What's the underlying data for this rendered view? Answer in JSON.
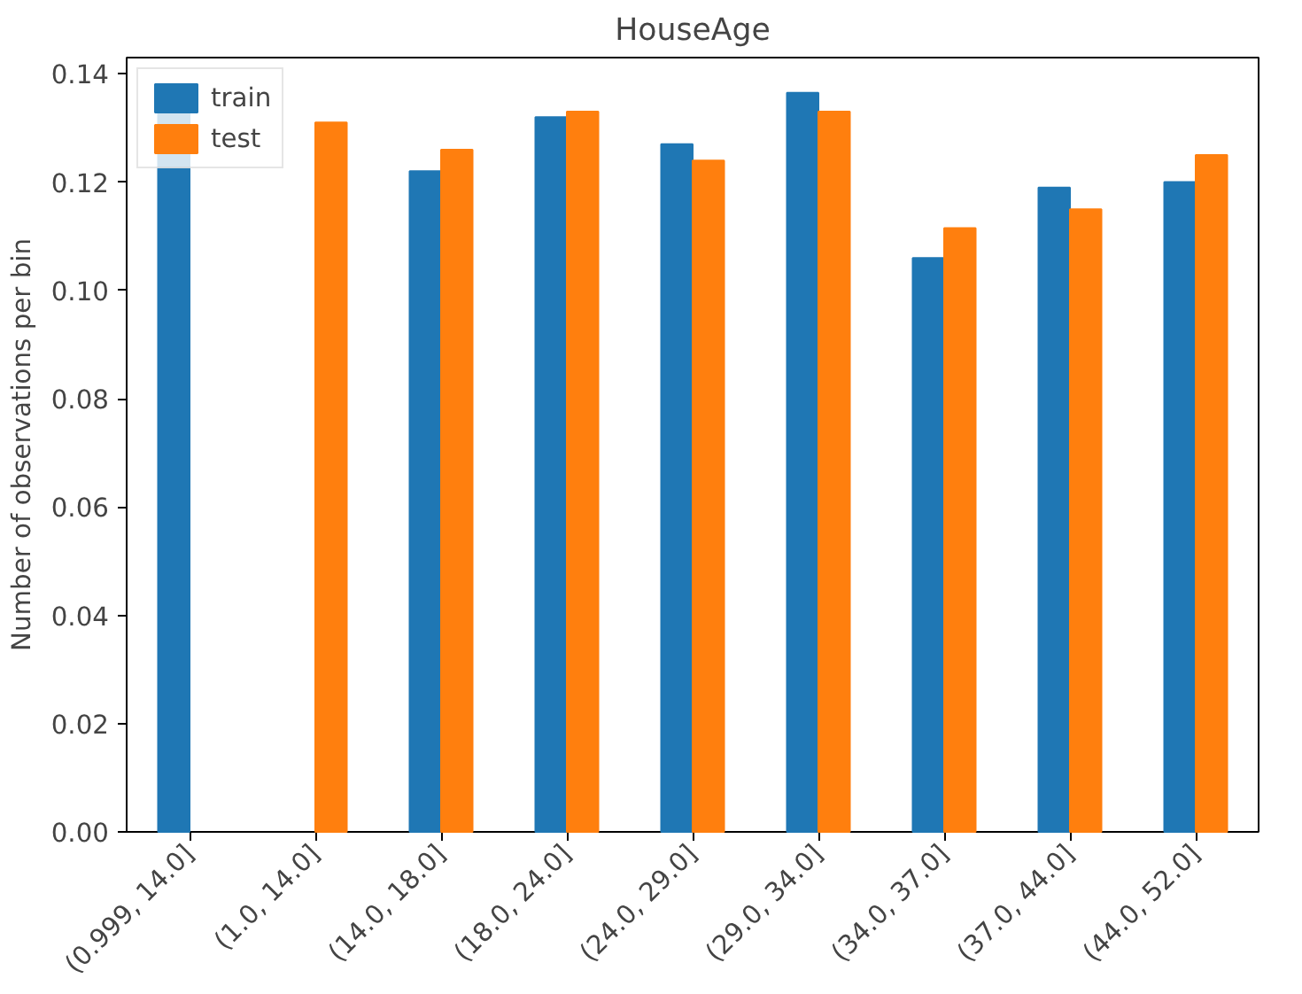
{
  "chart_data": {
    "type": "bar",
    "title": "HouseAge",
    "ylabel": "Number of observations per bin",
    "categories": [
      "(0.999, 14.0]",
      "(1.0, 14.0]",
      "(14.0, 18.0]",
      "(18.0, 24.0]",
      "(24.0, 29.0]",
      "(29.0, 34.0]",
      "(34.0, 37.0]",
      "(37.0, 44.0]",
      "(44.0, 52.0]"
    ],
    "series": [
      {
        "name": "train",
        "color": "#1f77b4",
        "values": [
          0.133,
          null,
          0.122,
          0.132,
          0.127,
          0.1365,
          0.106,
          0.119,
          0.12
        ]
      },
      {
        "name": "test",
        "color": "#ff7f0e",
        "values": [
          null,
          0.131,
          0.126,
          0.133,
          0.124,
          0.133,
          0.1115,
          0.115,
          0.125
        ]
      }
    ],
    "ylim": [
      0,
      0.143
    ],
    "yticks": [
      {
        "value": 0,
        "label": "0.00"
      },
      {
        "value": 0.02,
        "label": "0.02"
      },
      {
        "value": 0.04,
        "label": "0.04"
      },
      {
        "value": 0.06,
        "label": "0.06"
      },
      {
        "value": 0.08,
        "label": "0.08"
      },
      {
        "value": 0.1,
        "label": "0.10"
      },
      {
        "value": 0.12,
        "label": "0.12"
      },
      {
        "value": 0.14,
        "label": "0.14"
      }
    ],
    "grid": false,
    "legend": "top left"
  }
}
